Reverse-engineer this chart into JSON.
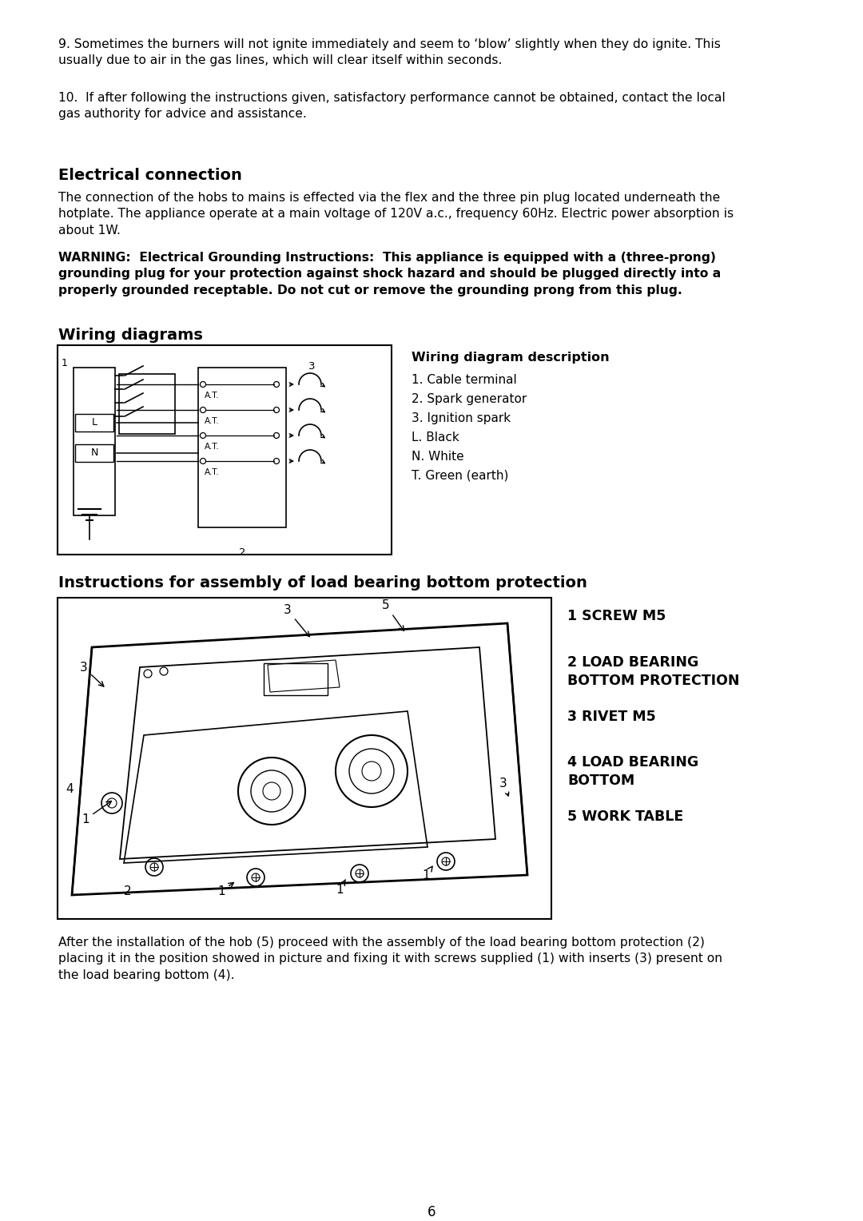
{
  "bg_color": "#ffffff",
  "text_color": "#000000",
  "para9_text": "9. Sometimes the burners will not ignite immediately and seem to ‘blow’ slightly when they do ignite. This\nusually due to air in the gas lines, which will clear itself within seconds.",
  "para10_text": "10.  If after following the instructions given, satisfactory performance cannot be obtained, contact the local\ngas authority for advice and assistance.",
  "section1_title": "Electrical connection",
  "section1_body": "The connection of the hobs to mains is effected via the flex and the three pin plug located underneath the\nhotplate. The appliance operate at a main voltage of 120V a.c., frequency 60Hz. Electric power absorption is\nabout 1W.",
  "section1_warning": "WARNING:  Electrical Grounding Instructions:  This appliance is equipped with a (three-prong)\ngrounding plug for your protection against shock hazard and should be plugged directly into a\nproperly grounded receptable. Do not cut or remove the grounding prong from this plug.",
  "section2_title": "Wiring diagrams",
  "wiring_desc_title": "Wiring diagram description",
  "wiring_desc_items": [
    "1. Cable terminal",
    "2. Spark generator",
    "3. Ignition spark",
    "L. Black",
    "N. White",
    "T. Green (earth)"
  ],
  "section3_title": "Instructions for assembly of load bearing bottom protection",
  "parts_list": [
    "1 SCREW M5",
    "2 LOAD BEARING\nBOTTOM PROTECTION",
    "3 RIVET M5",
    "4 LOAD BEARING\nBOTTOM",
    "5 WORK TABLE"
  ],
  "footer_text": "After the installation of the hob (5) proceed with the assembly of the load bearing bottom protection (2)\nplacing it in the position showed in picture and fixing it with screws supplied (1) with inserts (3) present on\nthe load bearing bottom (4).",
  "page_number": "6"
}
